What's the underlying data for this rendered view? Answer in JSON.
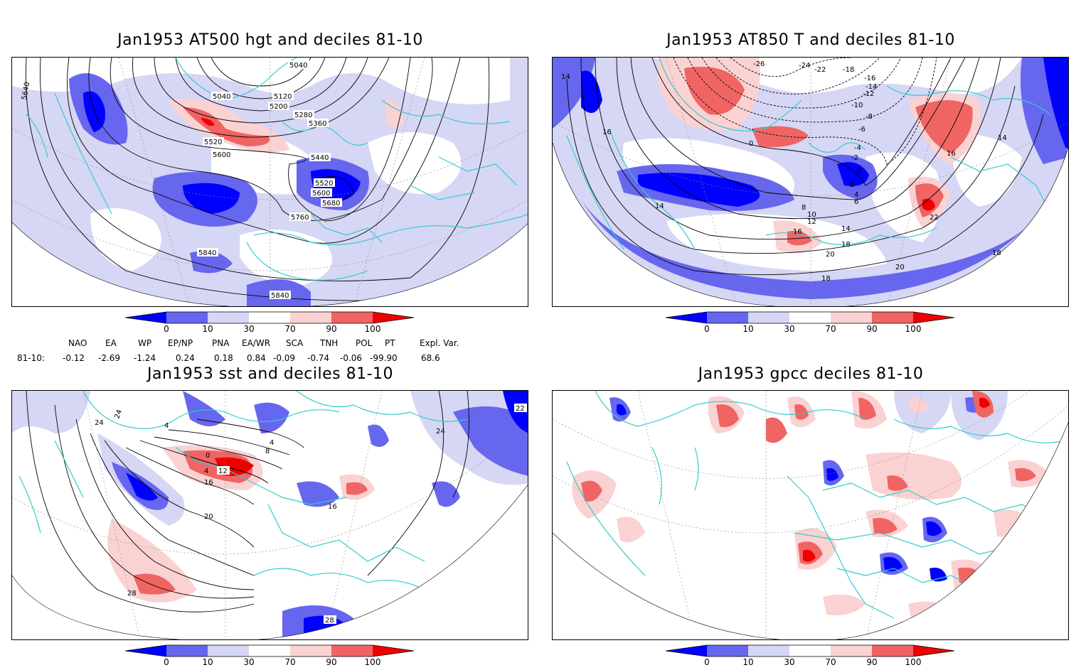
{
  "panels": {
    "tl": {
      "title": "Jan1953 AT500 hgt and deciles 81-10",
      "contour_labels": [
        "5040",
        "5040",
        "5120",
        "5200",
        "5280",
        "5360",
        "5520",
        "5600",
        "5440",
        "5520",
        "5600",
        "5680",
        "5760",
        "5840",
        "5840",
        "5640"
      ]
    },
    "tr": {
      "title": "Jan1953 AT850 T and deciles 81-10",
      "contour_labels": [
        "-26",
        "-24",
        "-22",
        "-18",
        "-16",
        "-14",
        "-12",
        "-10",
        "-8",
        "-6",
        "-4",
        "-2",
        "0",
        "0",
        "2",
        "4",
        "6",
        "8",
        "10",
        "12",
        "14",
        "16",
        "16",
        "16",
        "18",
        "18",
        "20",
        "20",
        "22",
        "14",
        "14",
        "14",
        "18"
      ]
    },
    "bl": {
      "title": "Jan1953 sst and deciles 81-10",
      "contour_labels": [
        "24",
        "24",
        "4",
        "0",
        "4",
        "8",
        "4",
        "12",
        "16",
        "20",
        "16",
        "28",
        "28",
        "24",
        "22"
      ]
    },
    "br": {
      "title": "Jan1953 gpcc deciles 81-10"
    }
  },
  "colorbar": {
    "labels": [
      "0",
      "10",
      "30",
      "70",
      "90",
      "100"
    ],
    "colors": [
      "#0000ff",
      "#6666ee",
      "#d6d6f5",
      "#ffffff",
      "#fad2d2",
      "#f06464",
      "#ee0000"
    ]
  },
  "teleconnections": {
    "headers": [
      "NAO",
      "EA",
      "WP",
      "EP/NP",
      "PNA",
      "EA/WR",
      "SCA",
      "TNH",
      "POL",
      "PT",
      "Expl. Var."
    ],
    "row_label": "81-10:",
    "values": [
      "-0.12",
      "-2.69",
      "-1.24",
      "0.24",
      "0.18",
      "0.84",
      "-0.09",
      "-0.74",
      "-0.06",
      "-99.90",
      "68.6"
    ]
  },
  "colors": {
    "coast": "#33cccc",
    "contour": "#000000"
  }
}
